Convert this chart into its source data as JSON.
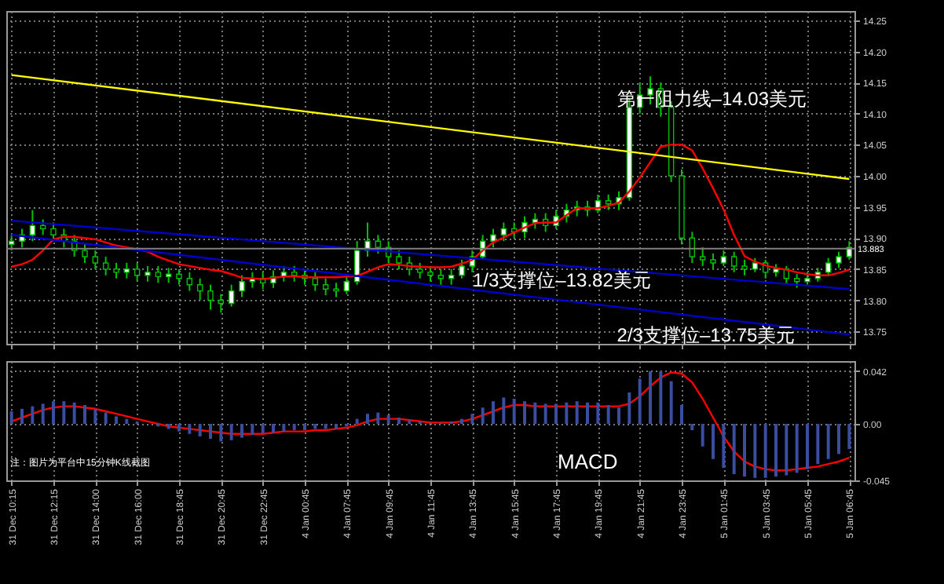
{
  "chart_data": [
    {
      "type": "candlestick",
      "color": "#00c000",
      "categories": [
        "31 Dec 10:15",
        null,
        null,
        null,
        "31 Dec 12:15",
        null,
        null,
        null,
        "31 Dec 14:00",
        null,
        null,
        null,
        "31 Dec 16:00",
        null,
        null,
        null,
        "31 Dec 18:45",
        null,
        null,
        null,
        "31 Dec 20:45",
        null,
        null,
        null,
        "31 Dec 22:45",
        null,
        null,
        null,
        "4 Jan 00:45",
        null,
        null,
        null,
        "4 Jan 07:45",
        null,
        null,
        null,
        "4 Jan 09:45",
        null,
        null,
        null,
        "4 Jan 11:45",
        null,
        null,
        null,
        "4 Jan 13:45",
        null,
        null,
        null,
        "4 Jan 15:45",
        null,
        null,
        null,
        "4 Jan 17:45",
        null,
        null,
        null,
        "4 Jan 19:45",
        null,
        null,
        null,
        "4 Jan 21:45",
        null,
        null,
        null,
        "4 Jan 23:45",
        null,
        null,
        null,
        "5 Jan 01:45",
        null,
        null,
        null,
        "5 Jan 03:45",
        null,
        null,
        null,
        "5 Jan 05:45",
        null,
        null,
        null,
        "5 Jan 06:45"
      ],
      "ohlc": [
        [
          13.89,
          13.905,
          13.88,
          13.895
        ],
        [
          13.895,
          13.915,
          13.885,
          13.905
        ],
        [
          13.905,
          13.945,
          13.895,
          13.92
        ],
        [
          13.92,
          13.93,
          13.905,
          13.915
        ],
        [
          13.915,
          13.925,
          13.895,
          13.905
        ],
        [
          13.905,
          13.915,
          13.885,
          13.895
        ],
        [
          13.895,
          13.905,
          13.87,
          13.88
        ],
        [
          13.88,
          13.89,
          13.86,
          13.87
        ],
        [
          13.87,
          13.88,
          13.85,
          13.86
        ],
        [
          13.86,
          13.87,
          13.84,
          13.85
        ],
        [
          13.85,
          13.86,
          13.835,
          13.845
        ],
        [
          13.845,
          13.86,
          13.835,
          13.85
        ],
        [
          13.85,
          13.86,
          13.83,
          13.84
        ],
        [
          13.84,
          13.855,
          13.83,
          13.845
        ],
        [
          13.845,
          13.855,
          13.828,
          13.838
        ],
        [
          13.838,
          13.852,
          13.828,
          13.842
        ],
        [
          13.842,
          13.85,
          13.825,
          13.835
        ],
        [
          13.835,
          13.845,
          13.815,
          13.825
        ],
        [
          13.825,
          13.835,
          13.8,
          13.815
        ],
        [
          13.815,
          13.825,
          13.785,
          13.8
        ],
        [
          13.8,
          13.81,
          13.78,
          13.795
        ],
        [
          13.795,
          13.825,
          13.79,
          13.815
        ],
        [
          13.815,
          13.84,
          13.805,
          13.83
        ],
        [
          13.83,
          13.845,
          13.82,
          13.835
        ],
        [
          13.835,
          13.845,
          13.818,
          13.828
        ],
        [
          13.828,
          13.848,
          13.82,
          13.838
        ],
        [
          13.838,
          13.855,
          13.83,
          13.845
        ],
        [
          13.845,
          13.855,
          13.83,
          13.84
        ],
        [
          13.84,
          13.85,
          13.825,
          13.835
        ],
        [
          13.835,
          13.845,
          13.815,
          13.825
        ],
        [
          13.825,
          13.835,
          13.808,
          13.818
        ],
        [
          13.818,
          13.828,
          13.805,
          13.815
        ],
        [
          13.815,
          13.84,
          13.81,
          13.83
        ],
        [
          13.83,
          13.895,
          13.825,
          13.88
        ],
        [
          13.88,
          13.925,
          13.87,
          13.895
        ],
        [
          13.895,
          13.905,
          13.875,
          13.885
        ],
        [
          13.885,
          13.895,
          13.86,
          13.87
        ],
        [
          13.87,
          13.88,
          13.85,
          13.86
        ],
        [
          13.86,
          13.87,
          13.84,
          13.85
        ],
        [
          13.85,
          13.86,
          13.835,
          13.845
        ],
        [
          13.845,
          13.855,
          13.83,
          13.84
        ],
        [
          13.84,
          13.85,
          13.825,
          13.835
        ],
        [
          13.835,
          13.85,
          13.825,
          13.84
        ],
        [
          13.84,
          13.865,
          13.835,
          13.855
        ],
        [
          13.855,
          13.88,
          13.845,
          13.87
        ],
        [
          13.87,
          13.905,
          13.865,
          13.895
        ],
        [
          13.895,
          13.915,
          13.885,
          13.905
        ],
        [
          13.905,
          13.925,
          13.895,
          13.915
        ],
        [
          13.915,
          13.925,
          13.9,
          13.91
        ],
        [
          13.91,
          13.935,
          13.9,
          13.925
        ],
        [
          13.925,
          13.94,
          13.915,
          13.93
        ],
        [
          13.93,
          13.94,
          13.91,
          13.92
        ],
        [
          13.92,
          13.945,
          13.915,
          13.935
        ],
        [
          13.935,
          13.955,
          13.925,
          13.945
        ],
        [
          13.945,
          13.96,
          13.935,
          13.95
        ],
        [
          13.95,
          13.96,
          13.935,
          13.945
        ],
        [
          13.945,
          13.97,
          13.94,
          13.96
        ],
        [
          13.96,
          13.97,
          13.945,
          13.955
        ],
        [
          13.955,
          13.975,
          13.945,
          13.965
        ],
        [
          13.965,
          14.125,
          13.96,
          14.11
        ],
        [
          14.11,
          14.15,
          14.1,
          14.13
        ],
        [
          14.13,
          14.16,
          14.115,
          14.14
        ],
        [
          14.14,
          14.15,
          14.095,
          14.11
        ],
        [
          14.11,
          14.12,
          13.99,
          14.0
        ],
        [
          14.0,
          14.01,
          13.89,
          13.9
        ],
        [
          13.9,
          13.91,
          13.86,
          13.87
        ],
        [
          13.87,
          13.885,
          13.855,
          13.865
        ],
        [
          13.865,
          13.875,
          13.85,
          13.86
        ],
        [
          13.86,
          13.88,
          13.855,
          13.87
        ],
        [
          13.87,
          13.878,
          13.845,
          13.855
        ],
        [
          13.855,
          13.865,
          13.84,
          13.85
        ],
        [
          13.85,
          13.868,
          13.845,
          13.86
        ],
        [
          13.86,
          13.865,
          13.835,
          13.845
        ],
        [
          13.845,
          13.858,
          13.838,
          13.85
        ],
        [
          13.85,
          13.855,
          13.825,
          13.835
        ],
        [
          13.835,
          13.842,
          13.82,
          13.83
        ],
        [
          13.83,
          13.845,
          13.825,
          13.835
        ],
        [
          13.835,
          13.852,
          13.83,
          13.845
        ],
        [
          13.845,
          13.868,
          13.84,
          13.86
        ],
        [
          13.86,
          13.878,
          13.852,
          13.87
        ],
        [
          13.87,
          13.895,
          13.865,
          13.885
        ]
      ],
      "series": [
        {
          "type": "line",
          "color": "#ff0000",
          "values": [
            13.854,
            13.858,
            13.865,
            13.88,
            13.898,
            13.902,
            13.902,
            13.9,
            13.898,
            13.893,
            13.888,
            13.885,
            13.882,
            13.878,
            13.87,
            13.864,
            13.858,
            13.855,
            13.852,
            13.849,
            13.847,
            13.842,
            13.836,
            13.835,
            13.834,
            13.836,
            13.838,
            13.839,
            13.837,
            13.837,
            13.837,
            13.837,
            13.838,
            13.839,
            13.846,
            13.853,
            13.858,
            13.857,
            13.855,
            13.854,
            13.853,
            13.853,
            13.854,
            13.859,
            13.865,
            13.88,
            13.893,
            13.901,
            13.909,
            13.917,
            13.924,
            13.925,
            13.925,
            13.937,
            13.948,
            13.948,
            13.948,
            13.952,
            13.957,
            13.975,
            13.997,
            14.022,
            14.047,
            14.05,
            14.05,
            14.041,
            14.012,
            13.98,
            13.946,
            13.905,
            13.871,
            13.862,
            13.856,
            13.852,
            13.849,
            13.845,
            13.842,
            13.84,
            13.84,
            13.844,
            13.849
          ]
        },
        {
          "type": "line",
          "color": "#ffff00",
          "x": [
            "31 Dec 10:15",
            "5 Jan 06:45"
          ],
          "values": [
            14.162,
            13.995
          ]
        },
        {
          "type": "line",
          "color": "#0000cd",
          "x": [
            "31 Dec 10:15",
            "5 Jan 06:45"
          ],
          "values": [
            13.928,
            13.818
          ]
        },
        {
          "type": "line",
          "color": "#0000cd",
          "x": [
            "31 Dec 10:15",
            "5 Jan 06:45"
          ],
          "values": [
            13.905,
            13.745
          ]
        }
      ],
      "ylim": [
        13.73,
        14.265
      ],
      "yticks": [
        {
          "value": 13.75,
          "label": "13.75"
        },
        {
          "value": 13.8,
          "label": "13.80"
        },
        {
          "value": 13.85,
          "label": "13.85"
        },
        {
          "value": 13.9,
          "label": "13.90"
        },
        {
          "value": 13.95,
          "label": "13.95"
        },
        {
          "value": 14.0,
          "label": "14.00"
        },
        {
          "value": 14.05,
          "label": "14.05"
        },
        {
          "value": 14.1,
          "label": "14.10"
        },
        {
          "value": 14.15,
          "label": "14.15"
        },
        {
          "value": 14.2,
          "label": "14.20"
        },
        {
          "value": 14.25,
          "label": "14.25"
        }
      ],
      "ref_lines": [
        {
          "axis": "y",
          "value": 13.883,
          "label": "13.883",
          "color": "#808080"
        }
      ],
      "annotations": [
        "第一阻力线–14.03美元",
        "1/3支撑位–13.82美元",
        "2/3支撑位–13.75美元"
      ],
      "grid": true,
      "tick_labels": "y"
    },
    {
      "type": "bar",
      "categories": [
        "31 Dec 10:15",
        null,
        null,
        null,
        "31 Dec 12:15",
        null,
        null,
        null,
        "31 Dec 14:00",
        null,
        null,
        null,
        "31 Dec 16:00",
        null,
        null,
        null,
        "31 Dec 18:45",
        null,
        null,
        null,
        "31 Dec 20:45",
        null,
        null,
        null,
        "31 Dec 22:45",
        null,
        null,
        null,
        "4 Jan 00:45",
        null,
        null,
        null,
        "4 Jan 07:45",
        null,
        null,
        null,
        "4 Jan 09:45",
        null,
        null,
        null,
        "4 Jan 11:45",
        null,
        null,
        null,
        "4 Jan 13:45",
        null,
        null,
        null,
        "4 Jan 15:45",
        null,
        null,
        null,
        "4 Jan 17:45",
        null,
        null,
        null,
        "4 Jan 19:45",
        null,
        null,
        null,
        "4 Jan 21:45",
        null,
        null,
        null,
        "4 Jan 23:45",
        null,
        null,
        null,
        "5 Jan 01:45",
        null,
        null,
        null,
        "5 Jan 03:45",
        null,
        null,
        null,
        "5 Jan 05:45",
        null,
        null,
        null,
        "5 Jan 06:45"
      ],
      "series": [
        {
          "type": "bar",
          "color": "#3a4d9f",
          "values": [
            0.01,
            0.012,
            0.014,
            0.016,
            0.018,
            0.018,
            0.017,
            0.015,
            0.012,
            0.009,
            0.006,
            0.004,
            0.002,
            0.0,
            -0.002,
            -0.004,
            -0.006,
            -0.008,
            -0.01,
            -0.012,
            -0.014,
            -0.013,
            -0.011,
            -0.009,
            -0.008,
            -0.007,
            -0.006,
            -0.005,
            -0.005,
            -0.004,
            -0.004,
            -0.004,
            -0.002,
            0.004,
            0.008,
            0.009,
            0.007,
            0.005,
            0.003,
            0.002,
            0.001,
            0.001,
            0.002,
            0.004,
            0.008,
            0.013,
            0.018,
            0.021,
            0.02,
            0.018,
            0.017,
            0.016,
            0.016,
            0.017,
            0.018,
            0.017,
            0.017,
            0.015,
            0.013,
            0.025,
            0.036,
            0.042,
            0.042,
            0.034,
            0.015,
            -0.005,
            -0.018,
            -0.028,
            -0.035,
            -0.04,
            -0.042,
            -0.043,
            -0.043,
            -0.042,
            -0.041,
            -0.039,
            -0.036,
            -0.032,
            -0.028,
            -0.024,
            -0.02
          ]
        },
        {
          "type": "line",
          "color": "#ff0000",
          "values": [
            0.002,
            0.005,
            0.008,
            0.011,
            0.013,
            0.014,
            0.014,
            0.013,
            0.012,
            0.01,
            0.008,
            0.006,
            0.004,
            0.002,
            0.0,
            -0.002,
            -0.003,
            -0.004,
            -0.005,
            -0.006,
            -0.007,
            -0.008,
            -0.008,
            -0.008,
            -0.008,
            -0.007,
            -0.006,
            -0.006,
            -0.006,
            -0.005,
            -0.005,
            -0.004,
            -0.003,
            -0.001,
            0.002,
            0.004,
            0.004,
            0.004,
            0.003,
            0.002,
            0.001,
            0.001,
            0.001,
            0.002,
            0.004,
            0.007,
            0.01,
            0.013,
            0.015,
            0.015,
            0.014,
            0.014,
            0.014,
            0.014,
            0.014,
            0.014,
            0.014,
            0.014,
            0.014,
            0.016,
            0.022,
            0.03,
            0.037,
            0.041,
            0.04,
            0.033,
            0.02,
            0.005,
            -0.01,
            -0.022,
            -0.03,
            -0.034,
            -0.036,
            -0.037,
            -0.037,
            -0.036,
            -0.035,
            -0.034,
            -0.032,
            -0.03,
            -0.027
          ]
        }
      ],
      "ylim": [
        -0.045,
        0.05
      ],
      "yticks": [
        {
          "value": 0.042,
          "label": "0.042"
        },
        {
          "value": 0,
          "label": "0.00"
        },
        {
          "value": -0.045,
          "label": "-0.045"
        }
      ],
      "annotations": [
        "MACD",
        "注：图片为平台中15分钟K线截图"
      ],
      "grid": true
    }
  ]
}
